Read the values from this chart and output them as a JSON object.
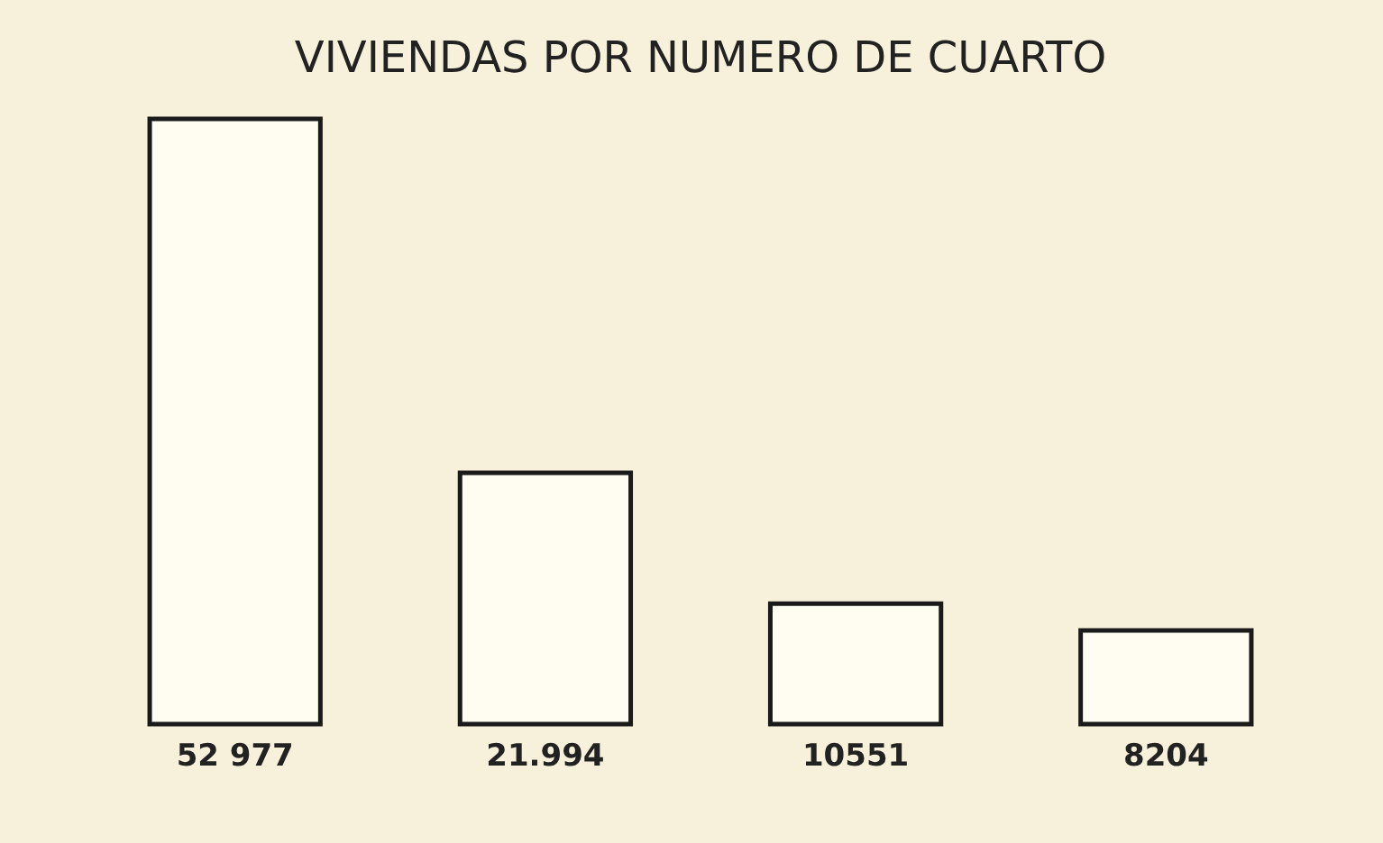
{
  "chart_data": {
    "type": "bar",
    "title": "VIVIENDAS POR NUMERO DE CUARTO",
    "categories": [
      null,
      null,
      null,
      null
    ],
    "values": [
      52977,
      21994,
      10551,
      8204
    ],
    "value_labels": [
      "52 977",
      "21.994",
      "10551",
      "8204"
    ],
    "color": "#fffcf2"
  }
}
